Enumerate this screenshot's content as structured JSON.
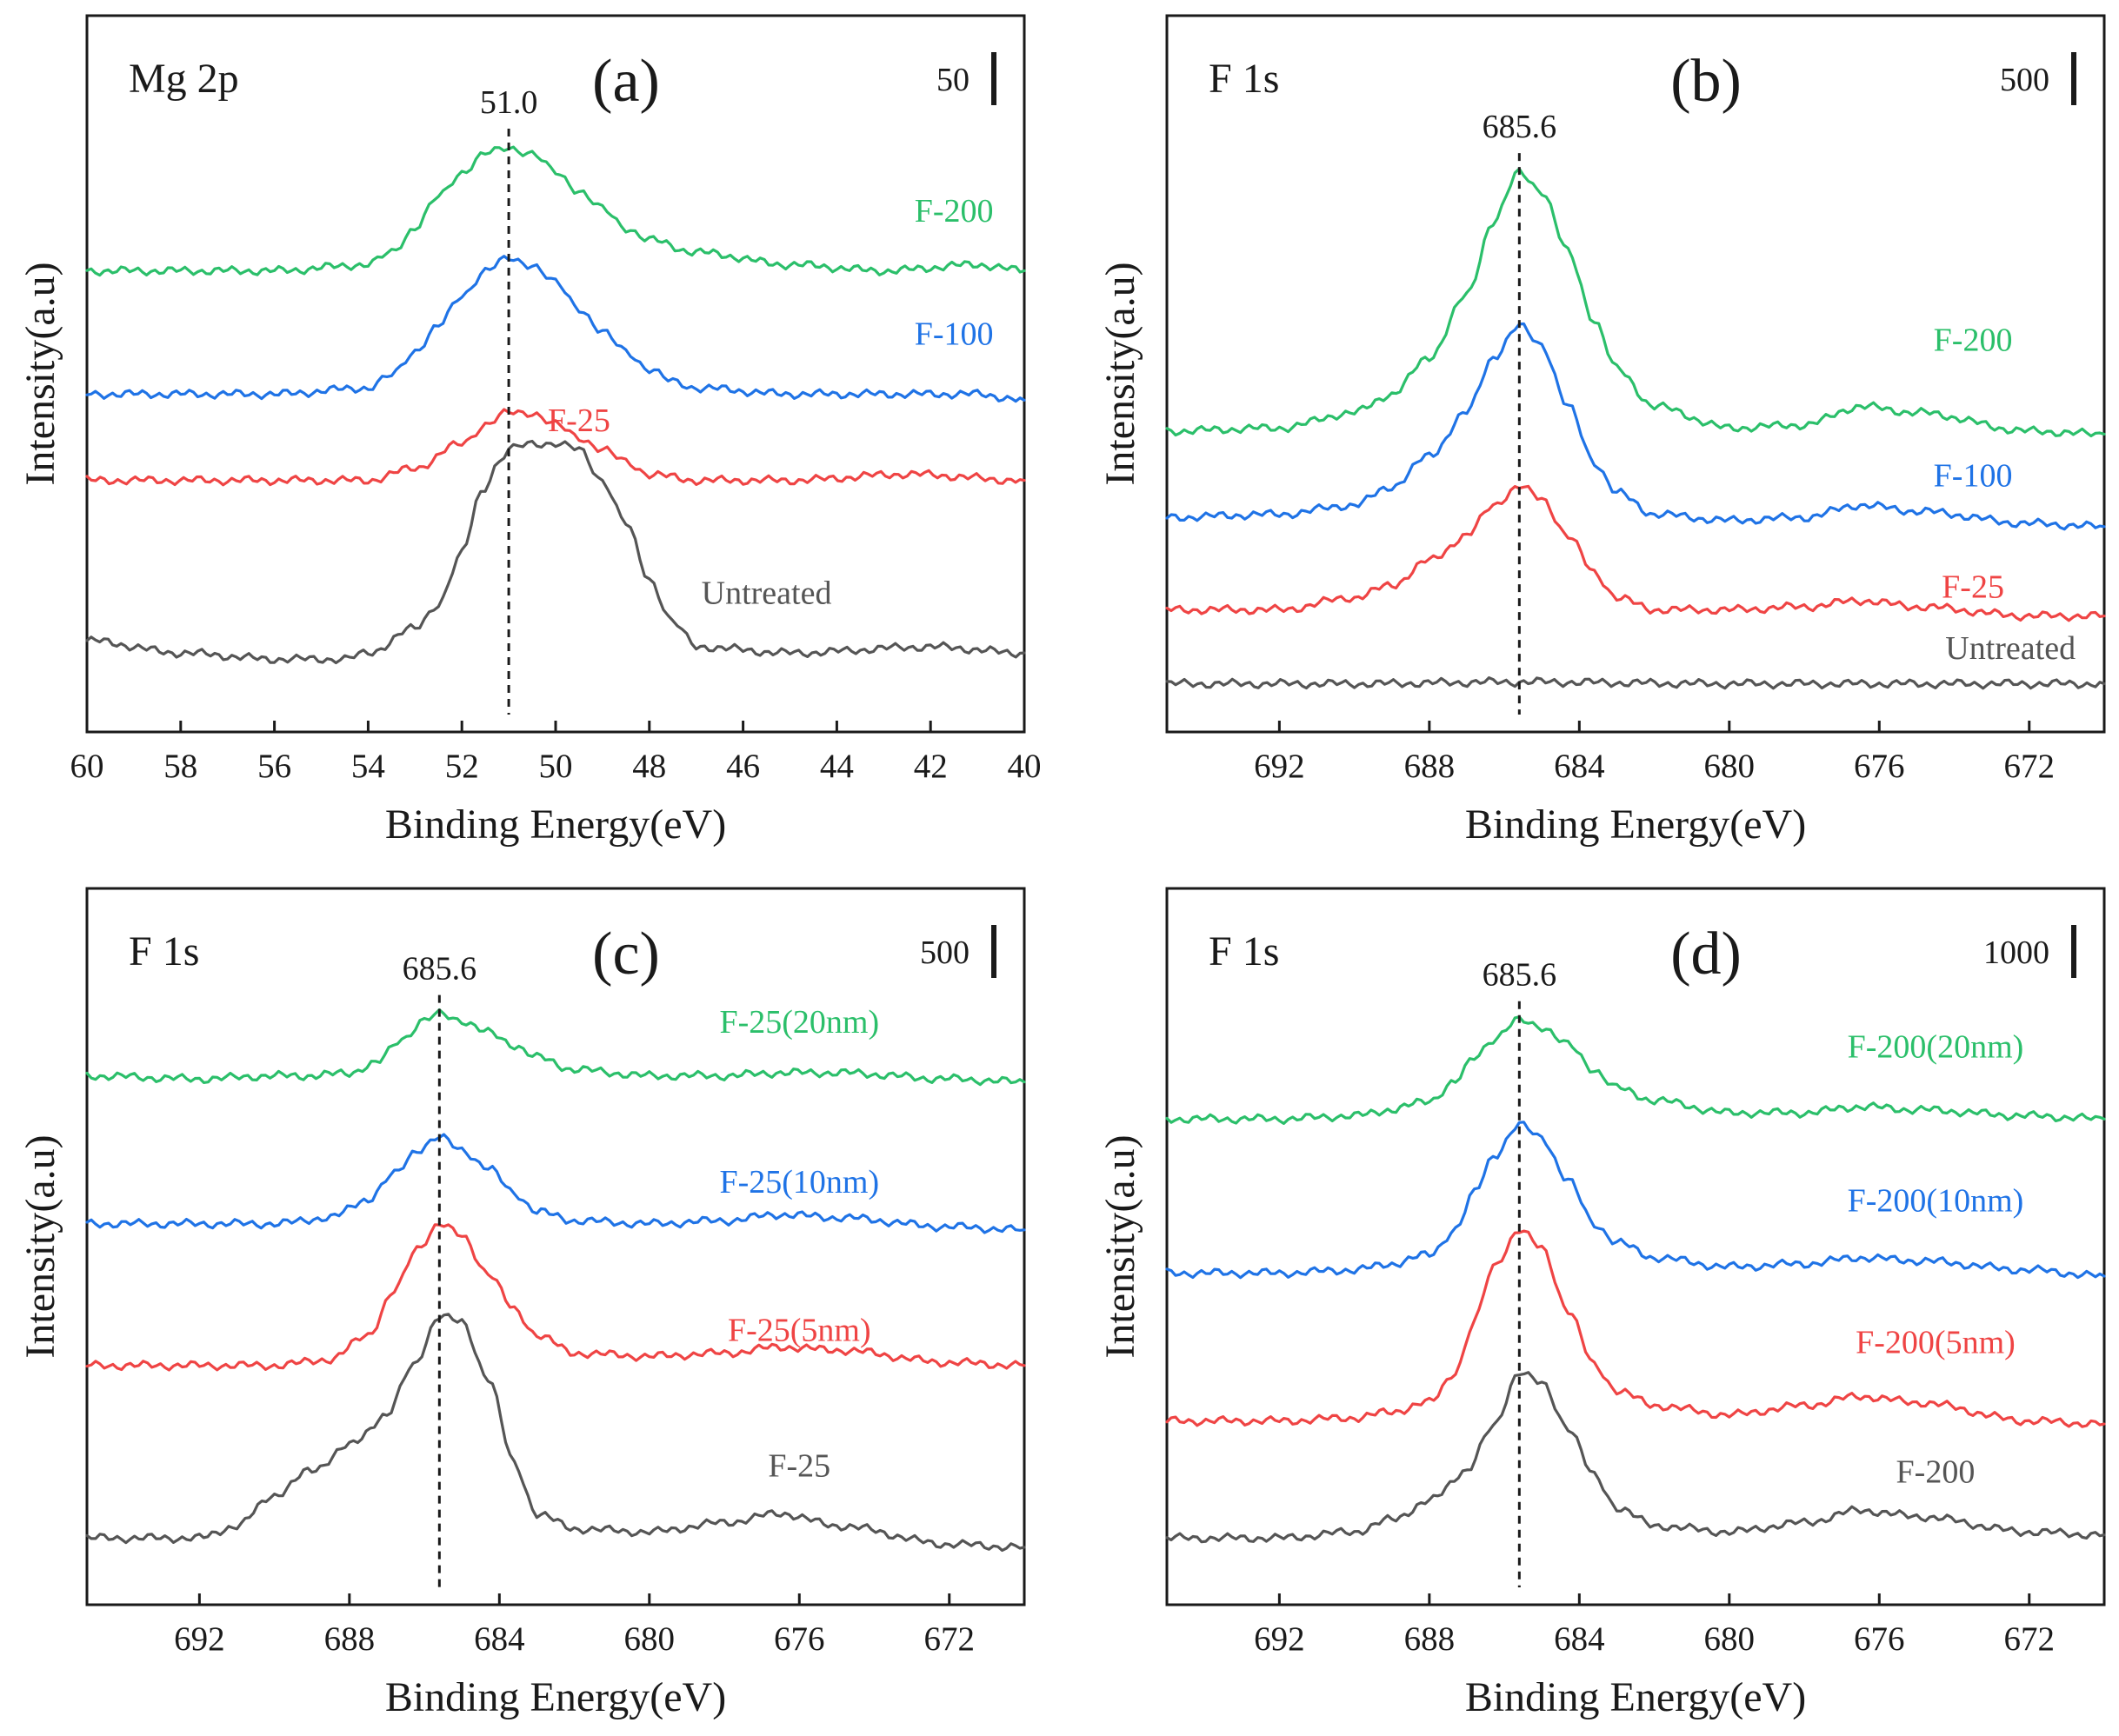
{
  "colors": {
    "gray": "#555555",
    "red": "#ef4444",
    "blue": "#1f73e6",
    "green": "#2bbf6a"
  },
  "chart_data": [
    {
      "type": "line",
      "panel": "(a)",
      "element": "Mg 2p",
      "xlabel": "Binding Energy(eV)",
      "ylabel": "Intensity(a.u)",
      "xlim": [
        60,
        40
      ],
      "xticks": [
        60,
        58,
        56,
        54,
        52,
        50,
        48,
        46,
        44,
        42,
        40
      ],
      "ylim": [
        0,
        100
      ],
      "scale_label": "50",
      "peak": 51.0,
      "peak_label": "51.0",
      "series": [
        {
          "name": "Untreated",
          "color": "gray",
          "label_at": [
            45.5,
            18
          ],
          "x": [
            60,
            58,
            56,
            54.5,
            54,
            53,
            52.5,
            52,
            51.6,
            51.2,
            51,
            50.5,
            50,
            49.5,
            49,
            48.5,
            48,
            47.5,
            47,
            45,
            42,
            40
          ],
          "y": [
            12,
            10,
            9,
            9,
            10,
            14,
            18,
            26,
            36,
            41,
            43,
            44,
            44,
            43,
            38,
            31,
            22,
            15,
            11,
            10,
            11,
            10
          ]
        },
        {
          "name": "F-25",
          "color": "red",
          "label_at": [
            49.5,
            46
          ],
          "x": [
            60,
            57,
            55,
            54,
            53,
            52,
            51.5,
            51,
            50.5,
            50,
            49.5,
            49,
            48.5,
            48,
            47,
            45,
            42.5,
            40
          ],
          "y": [
            38,
            38,
            38,
            38,
            40,
            44,
            47,
            49,
            49,
            47,
            45,
            43,
            41,
            39,
            38,
            38,
            39,
            38
          ]
        },
        {
          "name": "F-100",
          "color": "blue",
          "label_at": [
            41.5,
            60
          ],
          "x": [
            60,
            58,
            56,
            54,
            53.5,
            53,
            52.5,
            52,
            51.5,
            51,
            50.5,
            50,
            49.5,
            49,
            48.5,
            48,
            47.5,
            47,
            45,
            43,
            41,
            40
          ],
          "y": [
            52,
            52,
            52,
            53,
            55,
            59,
            63,
            68,
            72,
            74,
            73,
            70,
            66,
            62,
            59,
            56,
            54,
            53,
            52,
            52,
            52,
            51
          ]
        },
        {
          "name": "F-200",
          "color": "green",
          "label_at": [
            41.5,
            80
          ],
          "x": [
            60,
            58,
            56,
            54,
            53.5,
            53,
            52.5,
            52,
            51.5,
            51,
            50.5,
            50,
            49.5,
            49,
            48.5,
            48,
            47,
            45,
            43,
            41,
            40
          ],
          "y": [
            72,
            72,
            72,
            73,
            75,
            79,
            84,
            88,
            91,
            92,
            91,
            88,
            85,
            82,
            79,
            77,
            75,
            73,
            72,
            73,
            72
          ]
        }
      ]
    },
    {
      "type": "line",
      "panel": "(b)",
      "element": "F 1s",
      "xlabel": "Binding Energy(eV)",
      "ylabel": "Intensity(a.u)",
      "xlim": [
        695,
        670
      ],
      "xticks": [
        692,
        688,
        684,
        680,
        676,
        672
      ],
      "ylim": [
        0,
        100
      ],
      "scale_label": "500",
      "peak": 685.6,
      "peak_label": "685.6",
      "series": [
        {
          "name": "Untreated",
          "color": "gray",
          "label_at": [
            672.5,
            9
          ],
          "x": [
            695,
            690,
            685.6,
            680,
            676,
            670
          ],
          "y": [
            5,
            5,
            5.3,
            5,
            5,
            5
          ]
        },
        {
          "name": "F-25",
          "color": "red",
          "label_at": [
            673.5,
            19
          ],
          "x": [
            695,
            692,
            690,
            689,
            688,
            687,
            686.3,
            685.6,
            685,
            684.3,
            683.6,
            683,
            682,
            680,
            678,
            676.5,
            675,
            672,
            670
          ],
          "y": [
            17,
            17,
            19,
            21,
            25,
            29,
            34,
            37,
            35,
            29,
            23,
            19,
            17,
            17,
            17.5,
            18.5,
            17.5,
            16,
            16
          ]
        },
        {
          "name": "F-100",
          "color": "blue",
          "label_at": [
            673.5,
            37
          ],
          "x": [
            695,
            692,
            690,
            689,
            688,
            687,
            686.3,
            685.6,
            685,
            684.3,
            683.6,
            683,
            682,
            680,
            678,
            676.5,
            675,
            672,
            670
          ],
          "y": [
            32,
            32.5,
            34,
            37,
            42,
            49,
            58,
            63,
            60,
            50,
            41,
            36,
            32.5,
            31.5,
            32,
            34,
            33,
            31,
            30.5
          ]
        },
        {
          "name": "F-200",
          "color": "green",
          "label_at": [
            673.5,
            59
          ],
          "x": [
            695,
            692,
            690,
            689,
            688,
            687,
            686.3,
            685.6,
            685,
            684.3,
            683.6,
            683,
            682,
            680,
            678,
            676.5,
            675,
            672,
            670
          ],
          "y": [
            46,
            46.5,
            49,
            52,
            58,
            68,
            80,
            88,
            85,
            75,
            64,
            56,
            50,
            46.5,
            47,
            50,
            49,
            46,
            45.5
          ]
        }
      ]
    },
    {
      "type": "line",
      "panel": "(c)",
      "element": "F 1s",
      "xlabel": "Binding Energy(eV)",
      "ylabel": "Intensity(a.u)",
      "xlim": [
        695,
        670
      ],
      "xticks": [
        692,
        688,
        684,
        680,
        676,
        672
      ],
      "ylim": [
        0,
        100
      ],
      "scale_label": "500",
      "peak": 685.6,
      "peak_label": "685.6",
      "series": [
        {
          "name": "F-25",
          "color": "gray",
          "label_at": [
            676,
            18
          ],
          "x": [
            695,
            692,
            691,
            690,
            689,
            688,
            687,
            686.3,
            685.6,
            685,
            684.3,
            683.6,
            683,
            682,
            680,
            678,
            676.5,
            675,
            672,
            670
          ],
          "y": [
            8,
            8,
            10,
            15,
            19,
            23,
            28,
            36,
            44,
            43,
            34,
            20,
            12,
            9.5,
            9,
            10.5,
            12,
            10,
            7,
            6.5
          ]
        },
        {
          "name": "F-25(5nm)",
          "color": "red",
          "label_at": [
            676,
            40
          ],
          "x": [
            695,
            692,
            690,
            688.5,
            687.5,
            686.8,
            686.2,
            685.6,
            685,
            684.3,
            683.6,
            683,
            682,
            680,
            678,
            676.5,
            675,
            672,
            670
          ],
          "y": [
            36,
            36,
            36,
            37,
            41,
            48,
            55,
            59,
            57,
            51,
            45,
            41,
            38,
            37.5,
            38,
            39,
            38.5,
            36.5,
            36
          ]
        },
        {
          "name": "F-25(10nm)",
          "color": "blue",
          "label_at": [
            676,
            64
          ],
          "x": [
            695,
            692,
            690,
            688.5,
            687.5,
            686.8,
            686.2,
            685.6,
            685,
            684.3,
            683.6,
            683,
            682,
            680,
            678,
            676.5,
            675,
            672,
            670
          ],
          "y": [
            59,
            59,
            59,
            60,
            63,
            67,
            71,
            73,
            71,
            68,
            64,
            61,
            59.5,
            59,
            59.5,
            60.5,
            60,
            58.5,
            58
          ]
        },
        {
          "name": "F-25(20nm)",
          "color": "green",
          "label_at": [
            676,
            90
          ],
          "x": [
            695,
            692,
            690,
            689,
            688,
            687.3,
            686.6,
            686,
            685.6,
            685,
            684.3,
            683.6,
            683,
            682,
            680,
            678,
            676.5,
            675,
            672,
            670
          ],
          "y": [
            83,
            82.5,
            83,
            83,
            83.5,
            85,
            89,
            92,
            93,
            92,
            90,
            88,
            86,
            84,
            83,
            83,
            83.5,
            83.5,
            82.5,
            82
          ]
        }
      ]
    },
    {
      "type": "line",
      "panel": "(d)",
      "element": "F 1s",
      "xlabel": "Binding Energy(eV)",
      "ylabel": "Intensity(a.u)",
      "xlim": [
        695,
        670
      ],
      "xticks": [
        692,
        688,
        684,
        680,
        676,
        672
      ],
      "ylim": [
        0,
        100
      ],
      "scale_label": "1000",
      "peak": 685.6,
      "peak_label": "685.6",
      "series": [
        {
          "name": "F-200",
          "color": "gray",
          "label_at": [
            674.5,
            17
          ],
          "x": [
            695,
            692,
            690,
            689,
            688,
            687,
            686.3,
            685.6,
            685,
            684.3,
            683.6,
            683,
            682,
            680,
            678,
            676.5,
            675,
            672,
            670
          ],
          "y": [
            8,
            8,
            9,
            11,
            14,
            19,
            26,
            35,
            33,
            26,
            18,
            13,
            10,
            9,
            10.5,
            12.5,
            11.5,
            9,
            8.5
          ]
        },
        {
          "name": "F-200(5nm)",
          "color": "red",
          "label_at": [
            674.5,
            38
          ],
          "x": [
            695,
            692,
            690,
            689,
            688,
            687.3,
            686.8,
            686.3,
            685.6,
            685,
            684.3,
            683.6,
            683,
            682,
            680,
            678,
            676.5,
            675,
            672,
            670
          ],
          "y": [
            27,
            27,
            27.5,
            28.5,
            30,
            35,
            43,
            52,
            58,
            55,
            45,
            36,
            32,
            29.5,
            28,
            29.5,
            31,
            30,
            27,
            26.5
          ]
        },
        {
          "name": "F-200(10nm)",
          "color": "blue",
          "label_at": [
            674.5,
            61
          ],
          "x": [
            695,
            692,
            690,
            689,
            688,
            687.3,
            686.8,
            686.3,
            685.6,
            685,
            684.3,
            683.6,
            683,
            682,
            680,
            678,
            676.5,
            675,
            672,
            670
          ],
          "y": [
            51,
            51,
            51.5,
            52.5,
            54,
            58,
            64,
            70,
            75,
            73,
            66,
            59,
            56,
            53.5,
            52,
            52.5,
            53.5,
            53,
            51.5,
            50.5
          ]
        },
        {
          "name": "F-200(20nm)",
          "color": "green",
          "label_at": [
            674.5,
            86
          ],
          "x": [
            695,
            692,
            690,
            689,
            688,
            687.3,
            686.8,
            686.3,
            685.6,
            685,
            684.3,
            683.6,
            683,
            682,
            680,
            678,
            676.5,
            675,
            672,
            670
          ],
          "y": [
            76,
            76,
            76.5,
            77.5,
            79,
            82,
            86,
            89,
            92,
            91,
            88,
            84,
            81,
            79,
            77,
            77,
            78,
            77.5,
            76.5,
            76
          ]
        }
      ]
    }
  ]
}
